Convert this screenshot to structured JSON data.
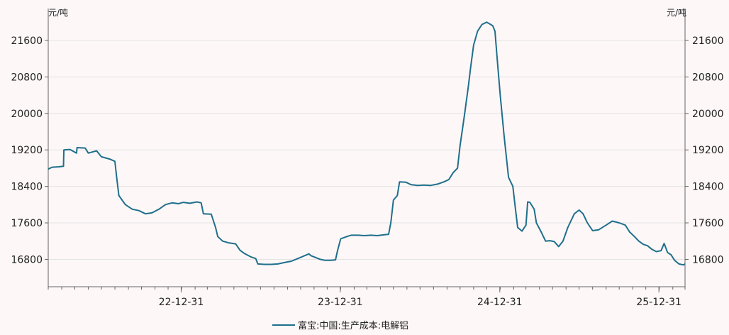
{
  "chart_data": {
    "type": "line",
    "title": "",
    "y_unit_left": "元/吨",
    "y_unit_right": "元/吨",
    "ylim": [
      16200,
      22300
    ],
    "y_ticks": [
      "16800",
      "17600",
      "18400",
      "19200",
      "20000",
      "20800",
      "21600"
    ],
    "x_tick_labels": [
      "22-12-31",
      "23-12-31",
      "24-12-31",
      "25-12-31"
    ],
    "x_range": [
      "2022-03-01",
      "2026-03-01"
    ],
    "grid": "horizontal",
    "legend": "bottom-center",
    "line_color": "#1f6f8b",
    "series": [
      {
        "name": "富宝:中国:生产成本:电解铝",
        "points": [
          [
            "2022-03-01",
            18780
          ],
          [
            "2022-03-10",
            18820
          ],
          [
            "2022-03-25",
            18830
          ],
          [
            "2022-04-05",
            18840
          ],
          [
            "2022-04-06",
            19200
          ],
          [
            "2022-04-20",
            19210
          ],
          [
            "2022-05-05",
            19130
          ],
          [
            "2022-05-06",
            19250
          ],
          [
            "2022-05-25",
            19240
          ],
          [
            "2022-06-01",
            19130
          ],
          [
            "2022-06-20",
            19180
          ],
          [
            "2022-07-01",
            19050
          ],
          [
            "2022-07-20",
            19000
          ],
          [
            "2022-08-01",
            18950
          ],
          [
            "2022-08-05",
            18600
          ],
          [
            "2022-08-10",
            18200
          ],
          [
            "2022-08-25",
            18000
          ],
          [
            "2022-09-10",
            17900
          ],
          [
            "2022-09-25",
            17870
          ],
          [
            "2022-10-10",
            17800
          ],
          [
            "2022-10-25",
            17820
          ],
          [
            "2022-11-10",
            17900
          ],
          [
            "2022-11-25",
            18000
          ],
          [
            "2022-12-10",
            18040
          ],
          [
            "2022-12-25",
            18020
          ],
          [
            "2023-01-05",
            18050
          ],
          [
            "2023-01-20",
            18030
          ],
          [
            "2023-02-05",
            18060
          ],
          [
            "2023-02-15",
            18040
          ],
          [
            "2023-02-20",
            17800
          ],
          [
            "2023-03-10",
            17790
          ],
          [
            "2023-03-20",
            17500
          ],
          [
            "2023-03-25",
            17300
          ],
          [
            "2023-04-05",
            17200
          ],
          [
            "2023-04-20",
            17160
          ],
          [
            "2023-05-05",
            17140
          ],
          [
            "2023-05-15",
            17000
          ],
          [
            "2023-05-25",
            16930
          ],
          [
            "2023-06-10",
            16850
          ],
          [
            "2023-06-20",
            16820
          ],
          [
            "2023-06-25",
            16700
          ],
          [
            "2023-07-10",
            16690
          ],
          [
            "2023-07-25",
            16690
          ],
          [
            "2023-08-10",
            16700
          ],
          [
            "2023-08-25",
            16730
          ],
          [
            "2023-09-10",
            16760
          ],
          [
            "2023-09-25",
            16820
          ],
          [
            "2023-10-10",
            16880
          ],
          [
            "2023-10-20",
            16920
          ],
          [
            "2023-10-25",
            16880
          ],
          [
            "2023-11-05",
            16840
          ],
          [
            "2023-11-15",
            16800
          ],
          [
            "2023-11-25",
            16780
          ],
          [
            "2023-12-10",
            16780
          ],
          [
            "2023-12-20",
            16790
          ],
          [
            "2023-12-25",
            17000
          ],
          [
            "2024-01-01",
            17250
          ],
          [
            "2024-01-15",
            17300
          ],
          [
            "2024-01-25",
            17330
          ],
          [
            "2024-02-10",
            17330
          ],
          [
            "2024-02-25",
            17320
          ],
          [
            "2024-03-10",
            17330
          ],
          [
            "2024-03-25",
            17320
          ],
          [
            "2024-04-10",
            17340
          ],
          [
            "2024-04-20",
            17350
          ],
          [
            "2024-04-25",
            17600
          ],
          [
            "2024-05-01",
            18100
          ],
          [
            "2024-05-10",
            18200
          ],
          [
            "2024-05-15",
            18500
          ],
          [
            "2024-05-30",
            18490
          ],
          [
            "2024-06-10",
            18440
          ],
          [
            "2024-06-25",
            18420
          ],
          [
            "2024-07-10",
            18430
          ],
          [
            "2024-07-25",
            18420
          ],
          [
            "2024-08-10",
            18450
          ],
          [
            "2024-08-25",
            18500
          ],
          [
            "2024-09-05",
            18550
          ],
          [
            "2024-09-15",
            18700
          ],
          [
            "2024-09-25",
            18800
          ],
          [
            "2024-10-01",
            19300
          ],
          [
            "2024-10-10",
            19900
          ],
          [
            "2024-10-20",
            20600
          ],
          [
            "2024-10-25",
            21000
          ],
          [
            "2024-11-01",
            21500
          ],
          [
            "2024-11-10",
            21800
          ],
          [
            "2024-11-20",
            21950
          ],
          [
            "2024-12-01",
            22000
          ],
          [
            "2024-12-10",
            21950
          ],
          [
            "2024-12-15",
            21920
          ],
          [
            "2024-12-20",
            21800
          ],
          [
            "2024-12-25",
            21200
          ],
          [
            "2025-01-01",
            20400
          ],
          [
            "2025-01-10",
            19500
          ],
          [
            "2025-01-20",
            18600
          ],
          [
            "2025-01-30",
            18400
          ],
          [
            "2025-02-05",
            17900
          ],
          [
            "2025-02-10",
            17500
          ],
          [
            "2025-02-20",
            17420
          ],
          [
            "2025-03-01",
            17550
          ],
          [
            "2025-03-05",
            18060
          ],
          [
            "2025-03-10",
            18050
          ],
          [
            "2025-03-20",
            17900
          ],
          [
            "2025-03-25",
            17600
          ],
          [
            "2025-04-05",
            17400
          ],
          [
            "2025-04-15",
            17200
          ],
          [
            "2025-04-25",
            17210
          ],
          [
            "2025-05-05",
            17190
          ],
          [
            "2025-05-15",
            17080
          ],
          [
            "2025-05-25",
            17200
          ],
          [
            "2025-06-05",
            17500
          ],
          [
            "2025-06-20",
            17800
          ],
          [
            "2025-07-01",
            17880
          ],
          [
            "2025-07-10",
            17800
          ],
          [
            "2025-07-20",
            17600
          ],
          [
            "2025-08-01",
            17430
          ],
          [
            "2025-08-15",
            17450
          ],
          [
            "2025-09-01",
            17550
          ],
          [
            "2025-09-15",
            17640
          ],
          [
            "2025-10-01",
            17600
          ],
          [
            "2025-10-15",
            17550
          ],
          [
            "2025-10-25",
            17400
          ],
          [
            "2025-11-05",
            17300
          ],
          [
            "2025-11-15",
            17200
          ],
          [
            "2025-11-25",
            17130
          ],
          [
            "2025-12-05",
            17100
          ],
          [
            "2025-12-15",
            17020
          ],
          [
            "2025-12-25",
            16970
          ],
          [
            "2026-01-05",
            16990
          ],
          [
            "2026-01-12",
            17150
          ],
          [
            "2026-01-20",
            16950
          ],
          [
            "2026-01-28",
            16900
          ],
          [
            "2026-02-05",
            16780
          ],
          [
            "2026-02-15",
            16700
          ],
          [
            "2026-02-25",
            16680
          ],
          [
            "2026-03-01",
            16700
          ]
        ]
      }
    ]
  }
}
